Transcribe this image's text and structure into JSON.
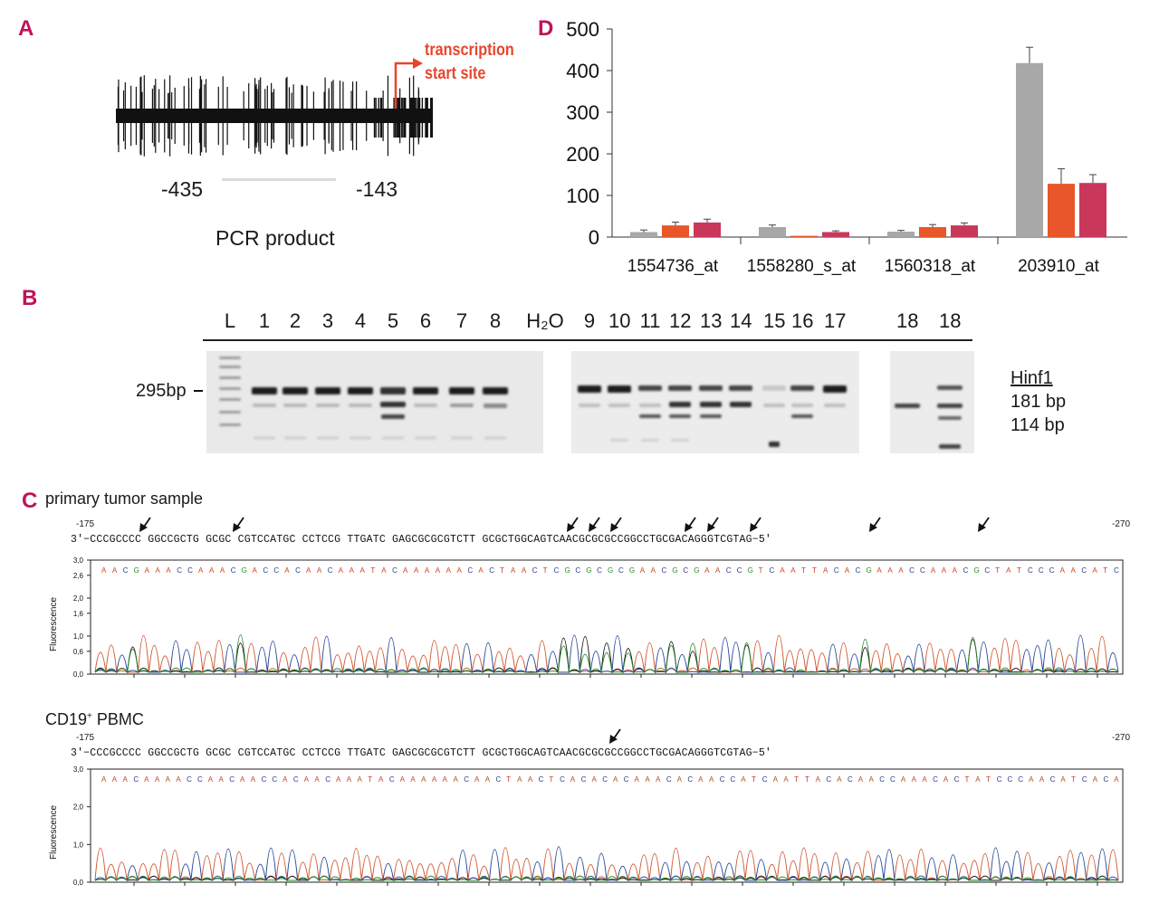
{
  "panels": {
    "a": "A",
    "b": "B",
    "c": "C",
    "d": "D"
  },
  "panel_a": {
    "tss_line1": "transcription",
    "tss_line2": "start site",
    "pcr_start": "-435",
    "pcr_end": "-143",
    "pcr_label": "PCR product",
    "tss_color": "#e8452c"
  },
  "panel_b": {
    "lanes_left": [
      "L",
      "1",
      "2",
      "3",
      "4",
      "5",
      "6",
      "7",
      "8",
      "H₂O"
    ],
    "lanes_mid": [
      "9",
      "10",
      "11",
      "12",
      "13",
      "14",
      "15",
      "16",
      "17"
    ],
    "lanes_right": [
      "18",
      "18"
    ],
    "size_marker": "295bp",
    "enzyme": "Hinf1",
    "fragment_1": "181 bp",
    "fragment_2": "114 bp"
  },
  "panel_c": {
    "sample1_title": "primary tumor sample",
    "sample2_title_main": "CD19",
    "sample2_title_sup": "+",
    "sample2_title_rest": " PBMC",
    "pos_start": "-175",
    "pos_end": "-270",
    "sequence": "3'−CCCGCCCC GGCCGCTG GCGC CGTCCATGC CCTCCG TTGATC GAGCGCGCGTCTT GCGCTGGCAGTCAACGCGCGCCGGCCTGCGACAGGGTCGTAG−5'",
    "ylabel": "Fluorescence",
    "yticks_1": [
      "3,0",
      "2,6",
      "2,0",
      "1,6",
      "1,0",
      "0,6",
      "0,0"
    ],
    "yticks_2": [
      "3,0",
      "2,0",
      "1,0",
      "0,0"
    ],
    "basecalls_1": "AACGAAACCAAACGACCACAACAAATACAAAAAACACTAACTCGCGCGCGAACGCGAACCGTCAATTACACGAAACCAAACGCTATCCCAACATC",
    "basecalls_2": "AAACAAAACCAACAACCACAACAAATACAAAAAACAACTAACTCACACACAAACACAACCATCAATTACACAACCAAACACTATCCCAACATCACA"
  },
  "chart_data": {
    "type": "bar",
    "categories": [
      "1554736_at",
      "1558280_s_at",
      "1560318_at",
      "203910_at"
    ],
    "series": [
      {
        "values": [
          12,
          24,
          13,
          418
        ],
        "errors": [
          5,
          5,
          3,
          38
        ],
        "color": "#a8a8a8"
      },
      {
        "values": [
          28,
          3,
          24,
          128
        ],
        "errors": [
          8,
          0,
          6,
          36
        ],
        "color": "#e8562a"
      },
      {
        "values": [
          35,
          12,
          28,
          130
        ],
        "errors": [
          8,
          3,
          6,
          20
        ],
        "color": "#c9375a"
      }
    ],
    "yticks": [
      "0",
      "100",
      "200",
      "300",
      "400",
      "500"
    ],
    "ylim": [
      0,
      500
    ],
    "title": "",
    "xlabel": "",
    "ylabel": ""
  }
}
